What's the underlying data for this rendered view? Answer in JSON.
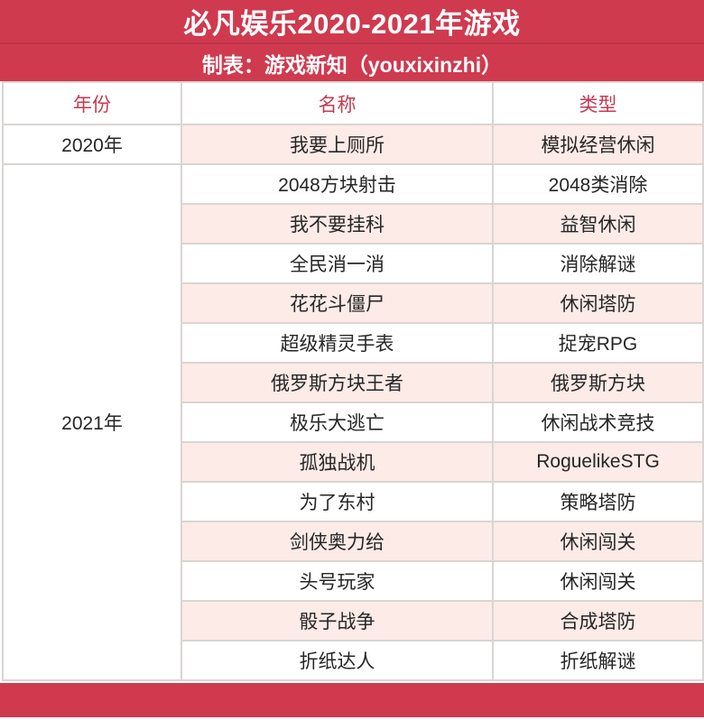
{
  "chart_data": {
    "type": "table",
    "title": "必凡娱乐2020-2021年游戏",
    "subtitle": "制表：游戏新知（youxixinzhi）",
    "columns": [
      "年份",
      "名称",
      "类型"
    ],
    "groups": [
      {
        "year": "2020年",
        "games": [
          {
            "name": "我要上厕所",
            "genre": "模拟经营休闲"
          }
        ]
      },
      {
        "year": "2021年",
        "games": [
          {
            "name": "2048方块射击",
            "genre": "2048类消除"
          },
          {
            "name": "我不要挂科",
            "genre": "益智休闲"
          },
          {
            "name": "全民消一消",
            "genre": "消除解谜"
          },
          {
            "name": "花花斗僵尸",
            "genre": "休闲塔防"
          },
          {
            "name": "超级精灵手表",
            "genre": "捉宠RPG"
          },
          {
            "name": "俄罗斯方块王者",
            "genre": "俄罗斯方块"
          },
          {
            "name": "极乐大逃亡",
            "genre": "休闲战术竞技"
          },
          {
            "name": "孤独战机",
            "genre": "RoguelikeSTG"
          },
          {
            "name": "为了东村",
            "genre": "策略塔防"
          },
          {
            "name": "剑侠奥力给",
            "genre": "休闲闯关"
          },
          {
            "name": "头号玩家",
            "genre": "休闲闯关"
          },
          {
            "name": "骰子战争",
            "genre": "合成塔防"
          },
          {
            "name": "折纸达人",
            "genre": "折纸解谜"
          }
        ]
      }
    ],
    "layout_hints": {
      "striped_rows": true,
      "year_column_merged": true
    }
  },
  "colors": {
    "accent_red": "#cf3a4f",
    "accent_red_dark": "#bd3347",
    "row_alt_pink": "#fdebe7",
    "header_text_red": "#c43a50",
    "grid_line": "#d9d5d2",
    "body_text": "#262626"
  }
}
